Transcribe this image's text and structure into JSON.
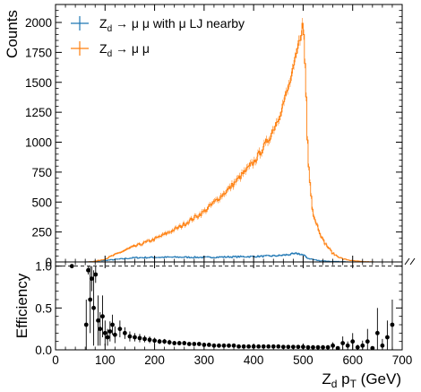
{
  "chart_data": [
    {
      "type": "histogram",
      "panel": "top",
      "ylabel": "Counts",
      "xlim": [
        0,
        700
      ],
      "ylim": [
        0,
        2150
      ],
      "y_ticks": [
        "0",
        "250",
        "500",
        "750",
        "1000",
        "1250",
        "1500",
        "1750",
        "2000"
      ],
      "y_tick_values": [
        0,
        250,
        500,
        750,
        1000,
        1250,
        1500,
        1750,
        2000
      ],
      "legend_position": "top-left",
      "legend": [
        {
          "name": "Z_d → μ μ with μ LJ nearby",
          "main": "Z",
          "sub": "d",
          "rest": " → μ μ with μ LJ nearby",
          "color": "#1f77b4"
        },
        {
          "name": "Z_d → μ μ",
          "main": "Z",
          "sub": "d",
          "rest": " → μ μ",
          "color": "#ff7f0e"
        }
      ],
      "series": [
        {
          "name": "Z_d → μ μ",
          "color": "#ff7f0e",
          "points": [
            [
              0,
              0
            ],
            [
              60,
              0
            ],
            [
              80,
              5
            ],
            [
              100,
              25
            ],
            [
              120,
              60
            ],
            [
              150,
              115
            ],
            [
              200,
              190
            ],
            [
              250,
              290
            ],
            [
              300,
              420
            ],
            [
              350,
              610
            ],
            [
              400,
              830
            ],
            [
              430,
              1020
            ],
            [
              450,
              1200
            ],
            [
              470,
              1450
            ],
            [
              480,
              1600
            ],
            [
              490,
              1800
            ],
            [
              500,
              2000
            ],
            [
              505,
              1550
            ],
            [
              510,
              850
            ],
            [
              520,
              400
            ],
            [
              540,
              180
            ],
            [
              560,
              70
            ],
            [
              580,
              25
            ],
            [
              600,
              10
            ],
            [
              620,
              3
            ],
            [
              650,
              0
            ],
            [
              700,
              0
            ]
          ]
        },
        {
          "name": "Z_d → μ μ with μ LJ nearby",
          "color": "#1f77b4",
          "points": [
            [
              0,
              0
            ],
            [
              60,
              0
            ],
            [
              80,
              5
            ],
            [
              120,
              20
            ],
            [
              160,
              35
            ],
            [
              200,
              38
            ],
            [
              250,
              40
            ],
            [
              300,
              38
            ],
            [
              350,
              42
            ],
            [
              400,
              45
            ],
            [
              450,
              52
            ],
            [
              490,
              70
            ],
            [
              500,
              58
            ],
            [
              510,
              30
            ],
            [
              530,
              12
            ],
            [
              560,
              4
            ],
            [
              600,
              1
            ],
            [
              650,
              0
            ],
            [
              700,
              0
            ]
          ]
        }
      ]
    },
    {
      "type": "scatter",
      "panel": "bottom",
      "title": "",
      "xlabel": "Z_d p_T (GeV)",
      "xlabel_parts": {
        "main": "Z",
        "sub": "d",
        "mid": " p",
        "sub2": "T",
        "rest": " (GeV)"
      },
      "ylabel": "Efficiency",
      "xlim": [
        0,
        700
      ],
      "ylim": [
        0,
        1.05
      ],
      "x_ticks": [
        "0",
        "100",
        "200",
        "300",
        "400",
        "500",
        "600",
        "700"
      ],
      "x_tick_values": [
        0,
        100,
        200,
        300,
        400,
        500,
        600,
        700
      ],
      "y_ticks": [
        "0.0",
        "0.5",
        "1.0"
      ],
      "y_tick_values": [
        0,
        0.5,
        1.0
      ],
      "reference_line": 1.0,
      "series": [
        {
          "name": "Efficiency",
          "color": "#000000",
          "x": [
            33,
            62,
            66,
            70,
            73,
            77,
            81,
            86,
            90,
            95,
            100,
            105,
            110,
            115,
            120,
            130,
            140,
            150,
            160,
            170,
            180,
            190,
            200,
            210,
            220,
            230,
            240,
            250,
            260,
            270,
            280,
            290,
            300,
            310,
            320,
            330,
            340,
            350,
            360,
            370,
            380,
            390,
            400,
            410,
            420,
            430,
            440,
            450,
            460,
            470,
            480,
            490,
            500,
            510,
            520,
            530,
            540,
            550,
            560,
            570,
            580,
            590,
            600,
            610,
            620,
            630,
            640,
            650,
            660,
            670,
            680
          ],
          "y": [
            1.0,
            0.3,
            0.95,
            0.6,
            0.85,
            0.5,
            0.9,
            0.35,
            0.25,
            0.4,
            0.2,
            0.15,
            0.22,
            0.3,
            0.18,
            0.25,
            0.2,
            0.16,
            0.15,
            0.14,
            0.13,
            0.12,
            0.11,
            0.1,
            0.1,
            0.09,
            0.08,
            0.08,
            0.08,
            0.07,
            0.07,
            0.07,
            0.06,
            0.06,
            0.05,
            0.05,
            0.05,
            0.05,
            0.05,
            0.04,
            0.04,
            0.04,
            0.04,
            0.04,
            0.04,
            0.04,
            0.04,
            0.04,
            0.035,
            0.035,
            0.035,
            0.035,
            0.035,
            0.03,
            0.03,
            0.03,
            0.03,
            0.03,
            0.05,
            0.02,
            0.08,
            0.05,
            0.1,
            0.03,
            0.05,
            0.1,
            0.02,
            0.2,
            0.05,
            0.15,
            0.3
          ],
          "yerr": [
            0.0,
            0.3,
            0.05,
            0.4,
            0.15,
            0.45,
            0.1,
            0.3,
            0.2,
            0.25,
            0.15,
            0.1,
            0.12,
            0.12,
            0.1,
            0.1,
            0.07,
            0.06,
            0.05,
            0.05,
            0.04,
            0.04,
            0.035,
            0.03,
            0.03,
            0.03,
            0.025,
            0.025,
            0.025,
            0.02,
            0.02,
            0.02,
            0.02,
            0.02,
            0.015,
            0.015,
            0.015,
            0.015,
            0.015,
            0.015,
            0.015,
            0.015,
            0.012,
            0.012,
            0.012,
            0.012,
            0.012,
            0.012,
            0.012,
            0.012,
            0.012,
            0.012,
            0.012,
            0.015,
            0.015,
            0.015,
            0.02,
            0.02,
            0.04,
            0.02,
            0.08,
            0.05,
            0.1,
            0.03,
            0.06,
            0.15,
            0.02,
            0.3,
            0.08,
            0.2,
            0.3
          ]
        }
      ]
    }
  ]
}
